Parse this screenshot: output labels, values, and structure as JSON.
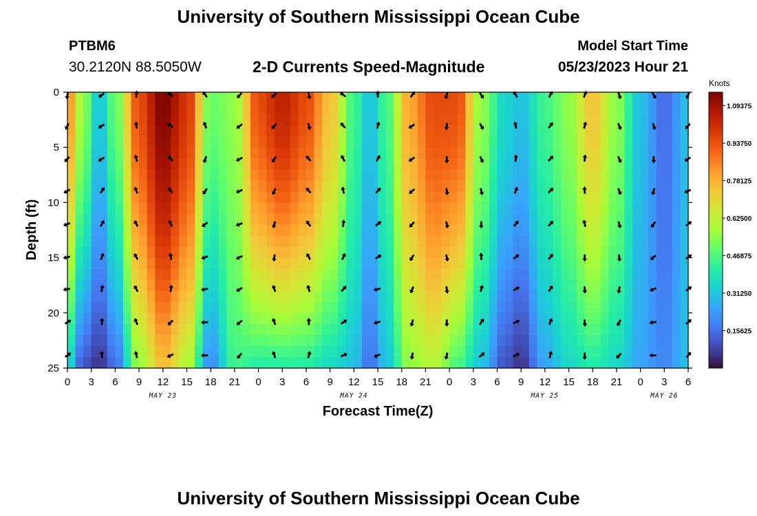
{
  "header": {
    "title": "University of Southern Mississippi Ocean Cube",
    "station_id": "PTBM6",
    "coordinates": "30.2120N  88.5050W",
    "plot_title": "2-D Currents Speed-Magnitude",
    "model_start_label": "Model Start Time",
    "model_start_value": "05/23/2023 Hour 21"
  },
  "footer": {
    "title": "University of Southern Mississippi Ocean Cube"
  },
  "chart_data": {
    "type": "heatmap",
    "title": "2-D Currents Speed-Magnitude",
    "xlabel": "Forecast Time(Z)",
    "ylabel": "Depth (ft)",
    "ylim": [
      0,
      25
    ],
    "y_inverted": true,
    "y_ticks": [
      0,
      5,
      10,
      15,
      20,
      25
    ],
    "x_ticks": [
      "0",
      "3",
      "6",
      "9",
      "12",
      "15",
      "18",
      "21",
      "0",
      "3",
      "6",
      "9",
      "12",
      "15",
      "18",
      "21",
      "0",
      "3",
      "6",
      "9",
      "12",
      "15",
      "18",
      "21",
      "0",
      "3",
      "6"
    ],
    "date_labels": [
      {
        "label": "MAY 23",
        "at_tick": 4
      },
      {
        "label": "MAY 24",
        "at_tick": 12
      },
      {
        "label": "MAY 25",
        "at_tick": 20
      },
      {
        "label": "MAY 26",
        "at_tick": 25
      }
    ],
    "colorbar": {
      "label": "Knots",
      "vmin": 0,
      "vmax": 1.15,
      "ticks": [
        "0.15625",
        "0.31250",
        "0.46875",
        "0.62500",
        "0.78125",
        "0.93750",
        "1.09375"
      ],
      "colors": [
        "#30123b",
        "#4145ab",
        "#4675ed",
        "#39a2fc",
        "#1bcfd4",
        "#24eca6",
        "#61fc6c",
        "#a4fc3b",
        "#d1e834",
        "#f3c63a",
        "#fe9b2d",
        "#f36315",
        "#d93806",
        "#b11901",
        "#7a0402"
      ]
    },
    "speed_profile_knots": [
      {
        "hour": 0,
        "surface": 0.85,
        "bottom": 0.35
      },
      {
        "hour": 2,
        "surface": 0.55,
        "bottom": 0.1
      },
      {
        "hour": 4,
        "surface": 0.3,
        "bottom": 0.05
      },
      {
        "hour": 6,
        "surface": 0.5,
        "bottom": 0.15
      },
      {
        "hour": 9,
        "surface": 0.95,
        "bottom": 0.55
      },
      {
        "hour": 12,
        "surface": 1.15,
        "bottom": 0.75
      },
      {
        "hour": 15,
        "surface": 1.0,
        "bottom": 0.6
      },
      {
        "hour": 18,
        "surface": 0.5,
        "bottom": 0.2
      },
      {
        "hour": 21,
        "surface": 0.55,
        "bottom": 0.45
      },
      {
        "hour": 24,
        "surface": 0.95,
        "bottom": 0.4
      },
      {
        "hour": 27,
        "surface": 1.05,
        "bottom": 0.4
      },
      {
        "hour": 30,
        "surface": 0.95,
        "bottom": 0.4
      },
      {
        "hour": 33,
        "surface": 0.75,
        "bottom": 0.35
      },
      {
        "hour": 36,
        "surface": 0.45,
        "bottom": 0.3
      },
      {
        "hour": 38,
        "surface": 0.3,
        "bottom": 0.15
      },
      {
        "hour": 40,
        "surface": 0.45,
        "bottom": 0.3
      },
      {
        "hour": 43,
        "surface": 0.8,
        "bottom": 0.55
      },
      {
        "hour": 46,
        "surface": 0.95,
        "bottom": 0.6
      },
      {
        "hour": 49,
        "surface": 0.95,
        "bottom": 0.45
      },
      {
        "hour": 52,
        "surface": 0.55,
        "bottom": 0.3
      },
      {
        "hour": 55,
        "surface": 0.35,
        "bottom": 0.1
      },
      {
        "hour": 57,
        "surface": 0.3,
        "bottom": 0.05
      },
      {
        "hour": 60,
        "surface": 0.45,
        "bottom": 0.25
      },
      {
        "hour": 63,
        "surface": 0.55,
        "bottom": 0.35
      },
      {
        "hour": 66,
        "surface": 0.75,
        "bottom": 0.4
      },
      {
        "hour": 69,
        "surface": 0.55,
        "bottom": 0.35
      },
      {
        "hour": 72,
        "surface": 0.3,
        "bottom": 0.25
      },
      {
        "hour": 75,
        "surface": 0.15,
        "bottom": 0.2
      },
      {
        "hour": 78,
        "surface": 0.3,
        "bottom": 0.3
      }
    ]
  }
}
